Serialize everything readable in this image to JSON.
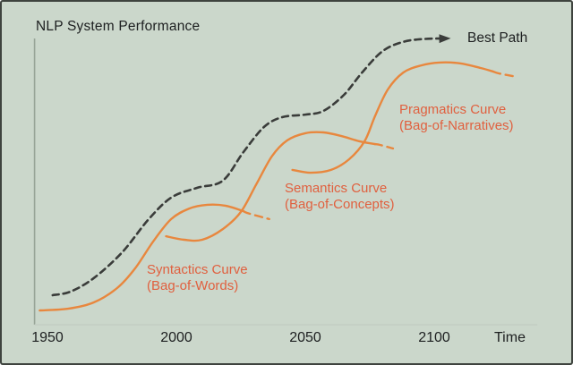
{
  "title": "NLP System Performance",
  "colors": {
    "background": "#cbd7cb",
    "frame_border": "#3e433e",
    "curve": "#e8873e",
    "curve_label_text": "#e0603f",
    "best_path": "#3a3c3a",
    "axis_y": "#97a497",
    "axis_x": "#c3cdc3",
    "text": "#1d1f20"
  },
  "chart_data": {
    "type": "line",
    "title": "NLP System Performance",
    "xlabel": "Time",
    "ylabel": "NLP System Performance",
    "x_ticks": [
      1950,
      2000,
      2050,
      2100
    ],
    "x_range": [
      1945,
      2140
    ],
    "y_range": [
      0,
      100
    ],
    "grid": false,
    "legend_position": "none",
    "best_path": {
      "label": "Best Path",
      "style": "dashed-with-arrow",
      "points": [
        [
          1952,
          10.3
        ],
        [
          1959,
          11.6
        ],
        [
          1968,
          16.3
        ],
        [
          1979,
          25.3
        ],
        [
          1989,
          36.6
        ],
        [
          1998,
          44.4
        ],
        [
          2008,
          47.8
        ],
        [
          2018,
          50.3
        ],
        [
          2026,
          60.3
        ],
        [
          2034,
          69.1
        ],
        [
          2041,
          72.5
        ],
        [
          2050,
          73.4
        ],
        [
          2057,
          74.7
        ],
        [
          2065,
          80.3
        ],
        [
          2072,
          88.1
        ],
        [
          2080,
          95.6
        ],
        [
          2088,
          98.8
        ],
        [
          2096,
          99.8
        ],
        [
          2104,
          100
        ]
      ]
    },
    "series": [
      {
        "name": "Syntactics Curve",
        "subtitle": "(Bag-of-Words)",
        "solid": [
          [
            1947,
            5
          ],
          [
            1958,
            5.6
          ],
          [
            1968,
            7.8
          ],
          [
            1977,
            12.8
          ],
          [
            1984,
            19.7
          ],
          [
            1991,
            29.1
          ],
          [
            1998,
            36.9
          ],
          [
            2005,
            40.6
          ],
          [
            2012,
            41.9
          ],
          [
            2019,
            41.6
          ],
          [
            2026,
            39.7
          ]
        ],
        "dashed_tail": [
          [
            2028,
            38.9
          ],
          [
            2036,
            36.9
          ]
        ]
      },
      {
        "name": "Semantics Curve",
        "subtitle": "(Bag-of-Concepts)",
        "solid": [
          [
            1996,
            30.9
          ],
          [
            2003,
            29.7
          ],
          [
            2010,
            29.7
          ],
          [
            2018,
            33.4
          ],
          [
            2025,
            39.4
          ],
          [
            2031,
            49.1
          ],
          [
            2037,
            58.8
          ],
          [
            2043,
            64.4
          ],
          [
            2050,
            66.9
          ],
          [
            2057,
            67.2
          ],
          [
            2064,
            65.9
          ],
          [
            2071,
            64.1
          ],
          [
            2077,
            63.1
          ]
        ],
        "dashed_tail": [
          [
            2079,
            62.8
          ],
          [
            2084,
            61.6
          ]
        ]
      },
      {
        "name": "Pragmatics Curve",
        "subtitle": "(Bag-of-Narratives)",
        "solid": [
          [
            2045,
            54.1
          ],
          [
            2052,
            53.1
          ],
          [
            2060,
            54.1
          ],
          [
            2067,
            57.8
          ],
          [
            2073,
            64.1
          ],
          [
            2077,
            72.8
          ],
          [
            2082,
            82.2
          ],
          [
            2088,
            88.1
          ],
          [
            2095,
            90.6
          ],
          [
            2102,
            91.6
          ],
          [
            2110,
            91.3
          ],
          [
            2118,
            89.7
          ],
          [
            2123,
            88.4
          ]
        ],
        "dashed_tail": [
          [
            2125,
            87.8
          ],
          [
            2132,
            86.6
          ]
        ]
      }
    ]
  }
}
